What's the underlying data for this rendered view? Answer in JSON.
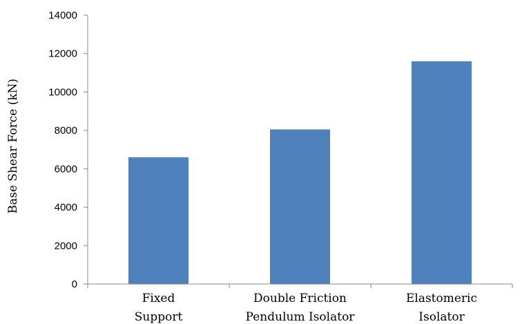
{
  "chart_data": {
    "type": "bar",
    "categories": [
      [
        "Fixed",
        "Support"
      ],
      [
        "Double Friction",
        "Pendulum Isolator"
      ],
      [
        "Elastomeric",
        "Isolator"
      ]
    ],
    "values": [
      6600,
      8050,
      11600
    ],
    "ylabel": "Base Shear Force (kN)",
    "xlabel": "",
    "ylim": [
      0,
      14000
    ],
    "yticks": [
      0,
      2000,
      4000,
      6000,
      8000,
      10000,
      12000,
      14000
    ],
    "grid": false,
    "legend": "none",
    "bar_color": "#4f81bd",
    "axis_color": "#888888"
  }
}
